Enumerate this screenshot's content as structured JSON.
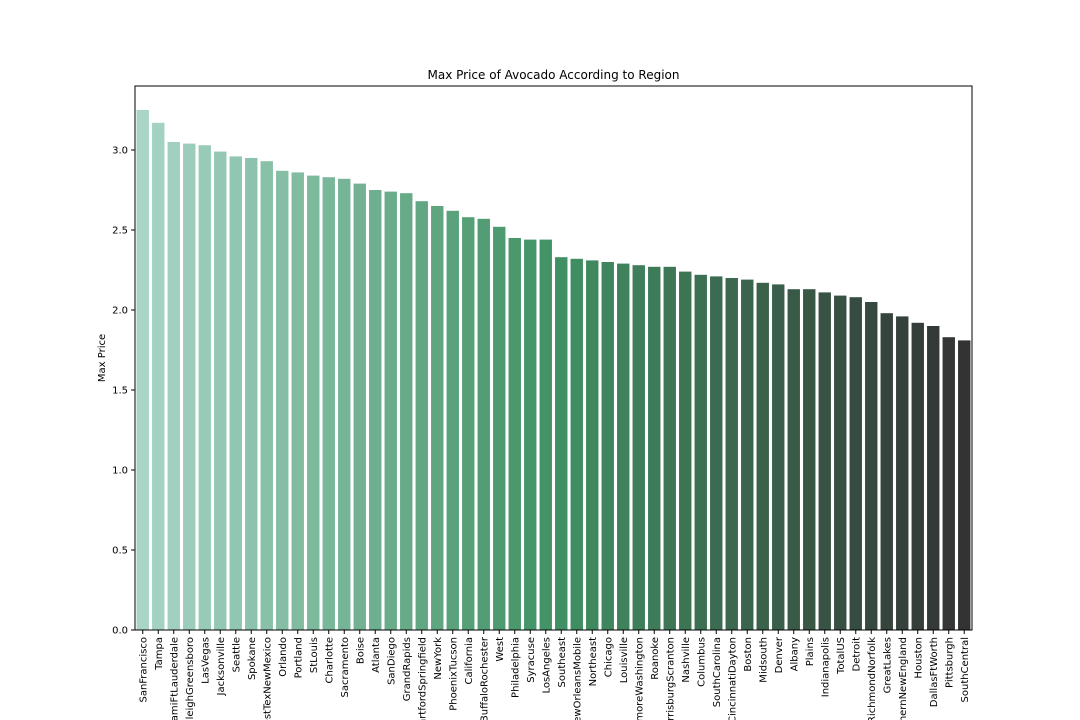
{
  "chart_data": {
    "type": "bar",
    "title": "Max Price of Avocado According to Region",
    "xlabel": "",
    "ylabel": "Max Price",
    "ylim": [
      0,
      3.4
    ],
    "yticks": [
      0.0,
      0.5,
      1.0,
      1.5,
      2.0,
      2.5,
      3.0
    ],
    "ytick_labels": [
      "0.0",
      "0.5",
      "1.0",
      "1.5",
      "2.0",
      "2.5",
      "3.0"
    ],
    "grid": false,
    "colormap": {
      "start": "#a8d5c6",
      "mid": "#419264",
      "end": "#333333"
    },
    "categories": [
      "SanFrancisco",
      "Tampa",
      "MiamiFtLauderdale",
      "RaleighGreensboro",
      "LasVegas",
      "Jacksonville",
      "Seattle",
      "Spokane",
      "WestTexNewMexico",
      "Orlando",
      "Portland",
      "StLouis",
      "Charlotte",
      "Sacramento",
      "Boise",
      "Atlanta",
      "SanDiego",
      "GrandRapids",
      "HartfordSpringfield",
      "NewYork",
      "PhoenixTucson",
      "California",
      "BuffaloRochester",
      "West",
      "Philadelphia",
      "Syracuse",
      "LosAngeles",
      "Southeast",
      "NewOrleansMobile",
      "Northeast",
      "Chicago",
      "Louisville",
      "BaltimoreWashington",
      "Roanoke",
      "HarrisburgScranton",
      "Nashville",
      "Columbus",
      "SouthCarolina",
      "CincinnatiDayton",
      "Boston",
      "Midsouth",
      "Denver",
      "Albany",
      "Plains",
      "Indianapolis",
      "TotalUS",
      "Detroit",
      "RichmondNorfolk",
      "GreatLakes",
      "NorthernNewEngland",
      "Houston",
      "DallasFtWorth",
      "Pittsburgh",
      "SouthCentral"
    ],
    "values": [
      3.25,
      3.17,
      3.05,
      3.04,
      3.03,
      2.99,
      2.96,
      2.95,
      2.93,
      2.87,
      2.86,
      2.84,
      2.83,
      2.82,
      2.79,
      2.75,
      2.74,
      2.73,
      2.68,
      2.65,
      2.62,
      2.58,
      2.57,
      2.52,
      2.45,
      2.44,
      2.44,
      2.33,
      2.32,
      2.31,
      2.3,
      2.29,
      2.28,
      2.27,
      2.27,
      2.24,
      2.22,
      2.21,
      2.2,
      2.19,
      2.17,
      2.16,
      2.13,
      2.13,
      2.11,
      2.09,
      2.08,
      2.05,
      1.98,
      1.96,
      1.92,
      1.9,
      1.83,
      1.81
    ]
  }
}
